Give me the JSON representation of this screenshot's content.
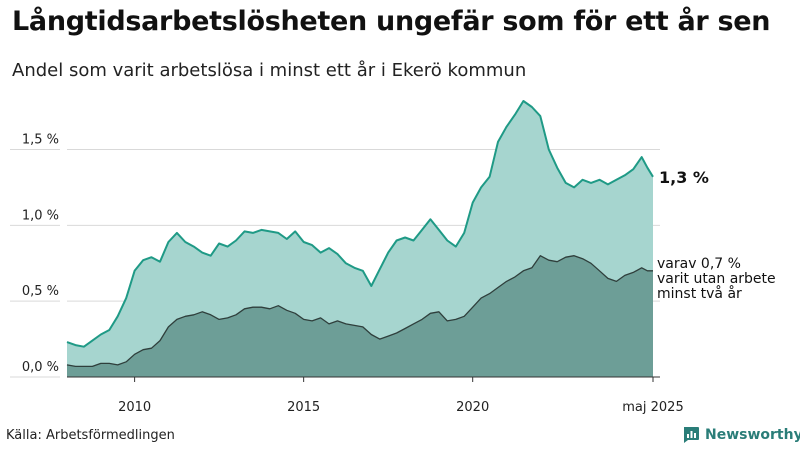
{
  "header": {
    "title": "Långtidsarbetslösheten ungefär som för ett år sen",
    "subtitle": "Andel som varit arbetslösa i minst ett år i Ekerö kommun"
  },
  "footer": {
    "source": "Källa: Arbetsförmedlingen",
    "brand": "Newsworthy"
  },
  "colors": {
    "total_fill": "#a6d5cf",
    "total_line": "#1f9a86",
    "long_fill": "#6d9e97",
    "long_line": "#2f3f3c",
    "brand": "#2a7d78"
  },
  "chart_data": {
    "type": "area",
    "x_range": [
      "2008-01",
      "2025-05"
    ],
    "ylim": [
      0,
      1.8
    ],
    "y_ticks": [
      {
        "value": 0.0,
        "label": "0,0 %"
      },
      {
        "value": 0.5,
        "label": "0,5 %"
      },
      {
        "value": 1.0,
        "label": "1,0 %"
      },
      {
        "value": 1.5,
        "label": "1,5 %"
      }
    ],
    "x_ticks": [
      {
        "value": "2010",
        "label": "2010"
      },
      {
        "value": "2015",
        "label": "2015"
      },
      {
        "value": "2020",
        "label": "2020"
      },
      {
        "value": "2025-05",
        "label": "maj 2025"
      }
    ],
    "series": [
      {
        "key": "total",
        "end_label": "1,3 %",
        "points": [
          [
            "2008-01",
            0.23
          ],
          [
            "2008-04",
            0.21
          ],
          [
            "2008-07",
            0.2
          ],
          [
            "2008-10",
            0.24
          ],
          [
            "2009-01",
            0.28
          ],
          [
            "2009-04",
            0.31
          ],
          [
            "2009-07",
            0.4
          ],
          [
            "2009-10",
            0.52
          ],
          [
            "2010-01",
            0.7
          ],
          [
            "2010-04",
            0.77
          ],
          [
            "2010-07",
            0.79
          ],
          [
            "2010-10",
            0.76
          ],
          [
            "2011-01",
            0.89
          ],
          [
            "2011-04",
            0.95
          ],
          [
            "2011-07",
            0.89
          ],
          [
            "2011-10",
            0.86
          ],
          [
            "2012-01",
            0.82
          ],
          [
            "2012-04",
            0.8
          ],
          [
            "2012-07",
            0.88
          ],
          [
            "2012-10",
            0.86
          ],
          [
            "2013-01",
            0.9
          ],
          [
            "2013-04",
            0.96
          ],
          [
            "2013-07",
            0.95
          ],
          [
            "2013-10",
            0.97
          ],
          [
            "2014-01",
            0.96
          ],
          [
            "2014-04",
            0.95
          ],
          [
            "2014-07",
            0.91
          ],
          [
            "2014-10",
            0.96
          ],
          [
            "2015-01",
            0.89
          ],
          [
            "2015-04",
            0.87
          ],
          [
            "2015-07",
            0.82
          ],
          [
            "2015-10",
            0.85
          ],
          [
            "2016-01",
            0.81
          ],
          [
            "2016-04",
            0.75
          ],
          [
            "2016-07",
            0.72
          ],
          [
            "2016-10",
            0.7
          ],
          [
            "2017-01",
            0.6
          ],
          [
            "2017-04",
            0.71
          ],
          [
            "2017-07",
            0.82
          ],
          [
            "2017-10",
            0.9
          ],
          [
            "2018-01",
            0.92
          ],
          [
            "2018-04",
            0.9
          ],
          [
            "2018-07",
            0.97
          ],
          [
            "2018-10",
            1.04
          ],
          [
            "2019-01",
            0.97
          ],
          [
            "2019-04",
            0.9
          ],
          [
            "2019-07",
            0.86
          ],
          [
            "2019-10",
            0.95
          ],
          [
            "2020-01",
            1.15
          ],
          [
            "2020-04",
            1.25
          ],
          [
            "2020-07",
            1.32
          ],
          [
            "2020-10",
            1.55
          ],
          [
            "2021-01",
            1.65
          ],
          [
            "2021-04",
            1.73
          ],
          [
            "2021-07",
            1.82
          ],
          [
            "2021-10",
            1.78
          ],
          [
            "2022-01",
            1.72
          ],
          [
            "2022-04",
            1.5
          ],
          [
            "2022-07",
            1.38
          ],
          [
            "2022-10",
            1.28
          ],
          [
            "2023-01",
            1.25
          ],
          [
            "2023-04",
            1.3
          ],
          [
            "2023-07",
            1.28
          ],
          [
            "2023-10",
            1.3
          ],
          [
            "2024-01",
            1.27
          ],
          [
            "2024-04",
            1.3
          ],
          [
            "2024-07",
            1.33
          ],
          [
            "2024-10",
            1.37
          ],
          [
            "2025-01",
            1.45
          ],
          [
            "2025-03",
            1.38
          ],
          [
            "2025-05",
            1.32
          ]
        ]
      },
      {
        "key": "long_term",
        "end_label": "varav 0,7 % varit utan arbete minst två år",
        "end_label_lines": [
          "varav 0,7 %",
          "varit utan arbete",
          "minst två år"
        ],
        "points": [
          [
            "2008-01",
            0.08
          ],
          [
            "2008-04",
            0.07
          ],
          [
            "2008-07",
            0.07
          ],
          [
            "2008-10",
            0.07
          ],
          [
            "2009-01",
            0.09
          ],
          [
            "2009-04",
            0.09
          ],
          [
            "2009-07",
            0.08
          ],
          [
            "2009-10",
            0.1
          ],
          [
            "2010-01",
            0.15
          ],
          [
            "2010-04",
            0.18
          ],
          [
            "2010-07",
            0.19
          ],
          [
            "2010-10",
            0.24
          ],
          [
            "2011-01",
            0.33
          ],
          [
            "2011-04",
            0.38
          ],
          [
            "2011-07",
            0.4
          ],
          [
            "2011-10",
            0.41
          ],
          [
            "2012-01",
            0.43
          ],
          [
            "2012-04",
            0.41
          ],
          [
            "2012-07",
            0.38
          ],
          [
            "2012-10",
            0.39
          ],
          [
            "2013-01",
            0.41
          ],
          [
            "2013-04",
            0.45
          ],
          [
            "2013-07",
            0.46
          ],
          [
            "2013-10",
            0.46
          ],
          [
            "2014-01",
            0.45
          ],
          [
            "2014-04",
            0.47
          ],
          [
            "2014-07",
            0.44
          ],
          [
            "2014-10",
            0.42
          ],
          [
            "2015-01",
            0.38
          ],
          [
            "2015-04",
            0.37
          ],
          [
            "2015-07",
            0.39
          ],
          [
            "2015-10",
            0.35
          ],
          [
            "2016-01",
            0.37
          ],
          [
            "2016-04",
            0.35
          ],
          [
            "2016-07",
            0.34
          ],
          [
            "2016-10",
            0.33
          ],
          [
            "2017-01",
            0.28
          ],
          [
            "2017-04",
            0.25
          ],
          [
            "2017-07",
            0.27
          ],
          [
            "2017-10",
            0.29
          ],
          [
            "2018-01",
            0.32
          ],
          [
            "2018-04",
            0.35
          ],
          [
            "2018-07",
            0.38
          ],
          [
            "2018-10",
            0.42
          ],
          [
            "2019-01",
            0.43
          ],
          [
            "2019-04",
            0.37
          ],
          [
            "2019-07",
            0.38
          ],
          [
            "2019-10",
            0.4
          ],
          [
            "2020-01",
            0.46
          ],
          [
            "2020-04",
            0.52
          ],
          [
            "2020-07",
            0.55
          ],
          [
            "2020-10",
            0.59
          ],
          [
            "2021-01",
            0.63
          ],
          [
            "2021-04",
            0.66
          ],
          [
            "2021-07",
            0.7
          ],
          [
            "2021-10",
            0.72
          ],
          [
            "2022-01",
            0.8
          ],
          [
            "2022-04",
            0.77
          ],
          [
            "2022-07",
            0.76
          ],
          [
            "2022-10",
            0.79
          ],
          [
            "2023-01",
            0.8
          ],
          [
            "2023-04",
            0.78
          ],
          [
            "2023-07",
            0.75
          ],
          [
            "2023-10",
            0.7
          ],
          [
            "2024-01",
            0.65
          ],
          [
            "2024-04",
            0.63
          ],
          [
            "2024-07",
            0.67
          ],
          [
            "2024-10",
            0.69
          ],
          [
            "2025-01",
            0.72
          ],
          [
            "2025-03",
            0.7
          ],
          [
            "2025-05",
            0.7
          ]
        ]
      }
    ]
  }
}
